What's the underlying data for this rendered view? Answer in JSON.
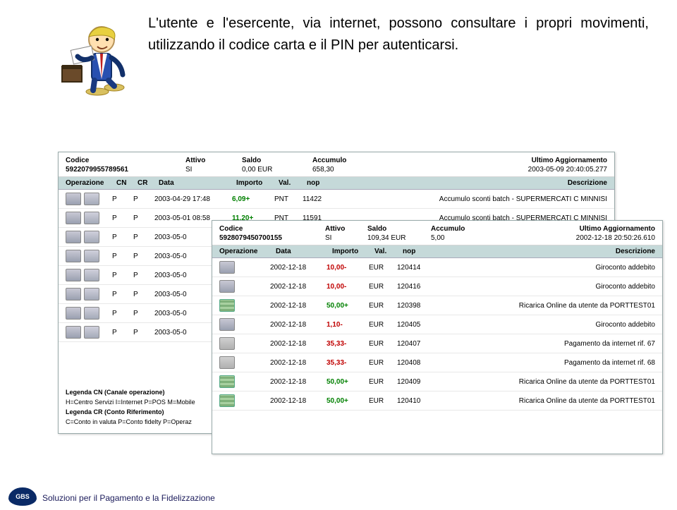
{
  "heading_text": "L'utente e l'esercente, via internet, possono consultare i propri movimenti, utilizzando il codice carta e il PIN per autenticarsi.",
  "footer_text": "Soluzioni per il Pagamento e la Fidelizzazione",
  "logo_text": "GBS",
  "back": {
    "top_headers": {
      "codice": "Codice",
      "attivo": "Attivo",
      "saldo": "Saldo",
      "accumulo": "Accumulo",
      "ultimo": "Ultimo Aggiornamento"
    },
    "top_values": {
      "codice": "5922079955789561",
      "attivo": "SI",
      "saldo": "0,00 EUR",
      "accumulo": "658,30",
      "ultimo": "2003-05-09 20:40:05.277"
    },
    "sec_headers": {
      "op": "Operazione",
      "cn": "CN",
      "cr": "CR",
      "data": "Data",
      "importo": "Importo",
      "val": "Val.",
      "nop": "nop",
      "desc": "Descrizione"
    },
    "rows": [
      {
        "cn": "P",
        "cr": "P",
        "data": "2003-04-29 17:48",
        "importo": "6,09+",
        "val": "PNT",
        "nop": "11422",
        "desc": "Accumulo sconti batch - SUPERMERCATI C MINNISI"
      },
      {
        "cn": "P",
        "cr": "P",
        "data": "2003-05-01 08:58",
        "importo": "11,20+",
        "val": "PNT",
        "nop": "11591",
        "desc": "Accumulo sconti batch - SUPERMERCATI C MINNISI"
      },
      {
        "cn": "P",
        "cr": "P",
        "data": "2003-05-0",
        "importo": "",
        "val": "",
        "nop": "",
        "desc": ""
      },
      {
        "cn": "P",
        "cr": "P",
        "data": "2003-05-0",
        "importo": "",
        "val": "",
        "nop": "",
        "desc": ""
      },
      {
        "cn": "P",
        "cr": "P",
        "data": "2003-05-0",
        "importo": "",
        "val": "",
        "nop": "",
        "desc": ""
      },
      {
        "cn": "P",
        "cr": "P",
        "data": "2003-05-0",
        "importo": "",
        "val": "",
        "nop": "",
        "desc": ""
      },
      {
        "cn": "P",
        "cr": "P",
        "data": "2003-05-0",
        "importo": "",
        "val": "",
        "nop": "",
        "desc": ""
      },
      {
        "cn": "P",
        "cr": "P",
        "data": "2003-05-0",
        "importo": "",
        "val": "",
        "nop": "",
        "desc": ""
      }
    ],
    "legend": {
      "t1": "Legenda CN (Canale operazione)",
      "l1": "H=Centro Servizi I=Internet P=POS M=Mobile",
      "t2": "Legenda CR (Conto Riferimento)",
      "l2": "C=Conto in valuta P=Conto fidelty P=Operaz"
    }
  },
  "front": {
    "top_headers": {
      "codice": "Codice",
      "attivo": "Attivo",
      "saldo": "Saldo",
      "accumulo": "Accumulo",
      "ultimo": "Ultimo Aggiornamento"
    },
    "top_values": {
      "codice": "5928079450700155",
      "attivo": "SI",
      "saldo": "109,34 EUR",
      "accumulo": "5,00",
      "ultimo": "2002-12-18 20:50:26.610"
    },
    "sec_headers": {
      "op": "Operazione",
      "data": "Data",
      "importo": "Importo",
      "val": "Val.",
      "nop": "nop",
      "desc": "Descrizione"
    },
    "rows": [
      {
        "ic": "ic-pos",
        "data": "2002-12-18",
        "importo": "10,00-",
        "cls": "red",
        "val": "EUR",
        "nop": "120414",
        "desc": "Giroconto addebito"
      },
      {
        "ic": "ic-pos",
        "data": "2002-12-18",
        "importo": "10,00-",
        "cls": "red",
        "val": "EUR",
        "nop": "120416",
        "desc": "Giroconto addebito"
      },
      {
        "ic": "ic-cash",
        "data": "2002-12-18",
        "importo": "50,00+",
        "cls": "green",
        "val": "EUR",
        "nop": "120398",
        "desc": "Ricarica Online da utente da PORTTEST01"
      },
      {
        "ic": "ic-pos",
        "data": "2002-12-18",
        "importo": "1,10-",
        "cls": "red",
        "val": "EUR",
        "nop": "120405",
        "desc": "Giroconto addebito"
      },
      {
        "ic": "ic-cart",
        "data": "2002-12-18",
        "importo": "35,33-",
        "cls": "red",
        "val": "EUR",
        "nop": "120407",
        "desc": "Pagamento da internet rif. 67"
      },
      {
        "ic": "ic-cart",
        "data": "2002-12-18",
        "importo": "35,33-",
        "cls": "red",
        "val": "EUR",
        "nop": "120408",
        "desc": "Pagamento da internet rif. 68"
      },
      {
        "ic": "ic-cash",
        "data": "2002-12-18",
        "importo": "50,00+",
        "cls": "green",
        "val": "EUR",
        "nop": "120409",
        "desc": "Ricarica Online da utente da PORTTEST01"
      },
      {
        "ic": "ic-cash",
        "data": "2002-12-18",
        "importo": "50,00+",
        "cls": "green",
        "val": "EUR",
        "nop": "120410",
        "desc": "Ricarica Online da utente da PORTTEST01"
      }
    ]
  }
}
